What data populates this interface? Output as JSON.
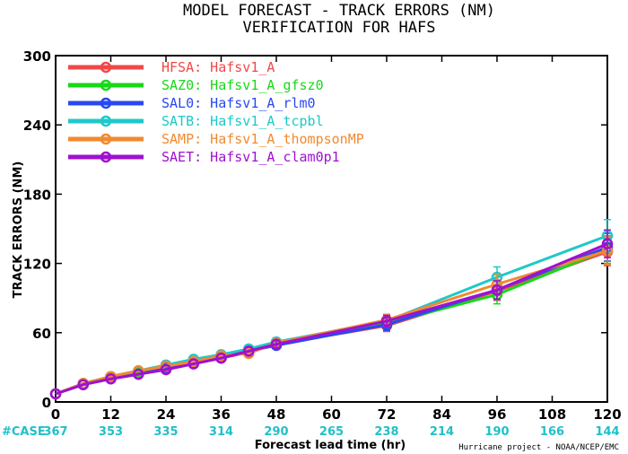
{
  "chart_data": {
    "type": "line",
    "title": "MODEL FORECAST - TRACK ERRORS (NM)",
    "subtitle": "VERIFICATION FOR HAFS",
    "xlabel": "Forecast lead time (hr)",
    "ylabel": "TRACK ERRORS (NM)",
    "xlim": [
      0,
      120
    ],
    "ylim": [
      0,
      300
    ],
    "xticks": [
      0,
      12,
      24,
      36,
      48,
      60,
      72,
      84,
      96,
      108,
      120
    ],
    "yticks": [
      0,
      60,
      120,
      180,
      240,
      300
    ],
    "ytick_labels": [
      "0",
      "60",
      "120",
      "180",
      "240",
      "300"
    ],
    "grid": false,
    "legend_position": "top-left",
    "case_label": "#CASE",
    "case_counts": [
      367,
      353,
      335,
      314,
      290,
      265,
      238,
      214,
      190,
      166,
      144
    ],
    "case_color": "#20c0c8",
    "credit": "Hurricane project - NOAA/NCEP/EMC",
    "x": [
      0,
      6,
      12,
      18,
      24,
      30,
      36,
      42,
      48,
      72,
      96,
      120
    ],
    "series": [
      {
        "name": "HFSA:",
        "model": "Hafsv1_A",
        "color": "#f04848",
        "values": [
          7,
          16,
          21,
          25,
          29,
          33,
          38,
          43,
          50,
          66,
          96,
          130
        ],
        "err": [
          2,
          2,
          2,
          2,
          2,
          2,
          2,
          2,
          3,
          5,
          8,
          12
        ]
      },
      {
        "name": "SAZ0:",
        "model": "Hafsv1_A_gfsz0",
        "color": "#18d818",
        "values": [
          7,
          16,
          22,
          26,
          30,
          35,
          39,
          44,
          51,
          68,
          93,
          132
        ],
        "err": [
          2,
          2,
          2,
          2,
          2,
          2,
          2,
          2,
          3,
          5,
          8,
          12
        ]
      },
      {
        "name": "SAL0:",
        "model": "Hafsv1_A_rlm0",
        "color": "#2848f0",
        "values": [
          7,
          15,
          20,
          24,
          29,
          34,
          38,
          44,
          49,
          67,
          97,
          134
        ],
        "err": [
          2,
          2,
          2,
          2,
          2,
          2,
          2,
          2,
          3,
          5,
          8,
          12
        ]
      },
      {
        "name": "SATB:",
        "model": "Hafsv1_A_tcpbl",
        "color": "#20c8c8",
        "values": [
          7,
          16,
          22,
          27,
          32,
          37,
          41,
          46,
          52,
          70,
          108,
          144
        ],
        "err": [
          2,
          2,
          2,
          2,
          2,
          2,
          2,
          2,
          3,
          5,
          9,
          14
        ]
      },
      {
        "name": "SAMP:",
        "model": "Hafsv1_A_thompsonMP",
        "color": "#f08a30",
        "values": [
          7,
          16,
          22,
          27,
          31,
          35,
          40,
          42,
          51,
          71,
          102,
          131
        ],
        "err": [
          2,
          2,
          2,
          2,
          2,
          2,
          2,
          2,
          3,
          5,
          8,
          12
        ]
      },
      {
        "name": "SAET:",
        "model": "Hafsv1_A_clam0p1",
        "color": "#a010d0",
        "values": [
          7,
          15,
          20,
          24,
          28,
          33,
          38,
          44,
          50,
          70,
          97,
          137
        ],
        "err": [
          2,
          2,
          2,
          2,
          2,
          2,
          2,
          2,
          3,
          5,
          8,
          12
        ]
      }
    ]
  }
}
